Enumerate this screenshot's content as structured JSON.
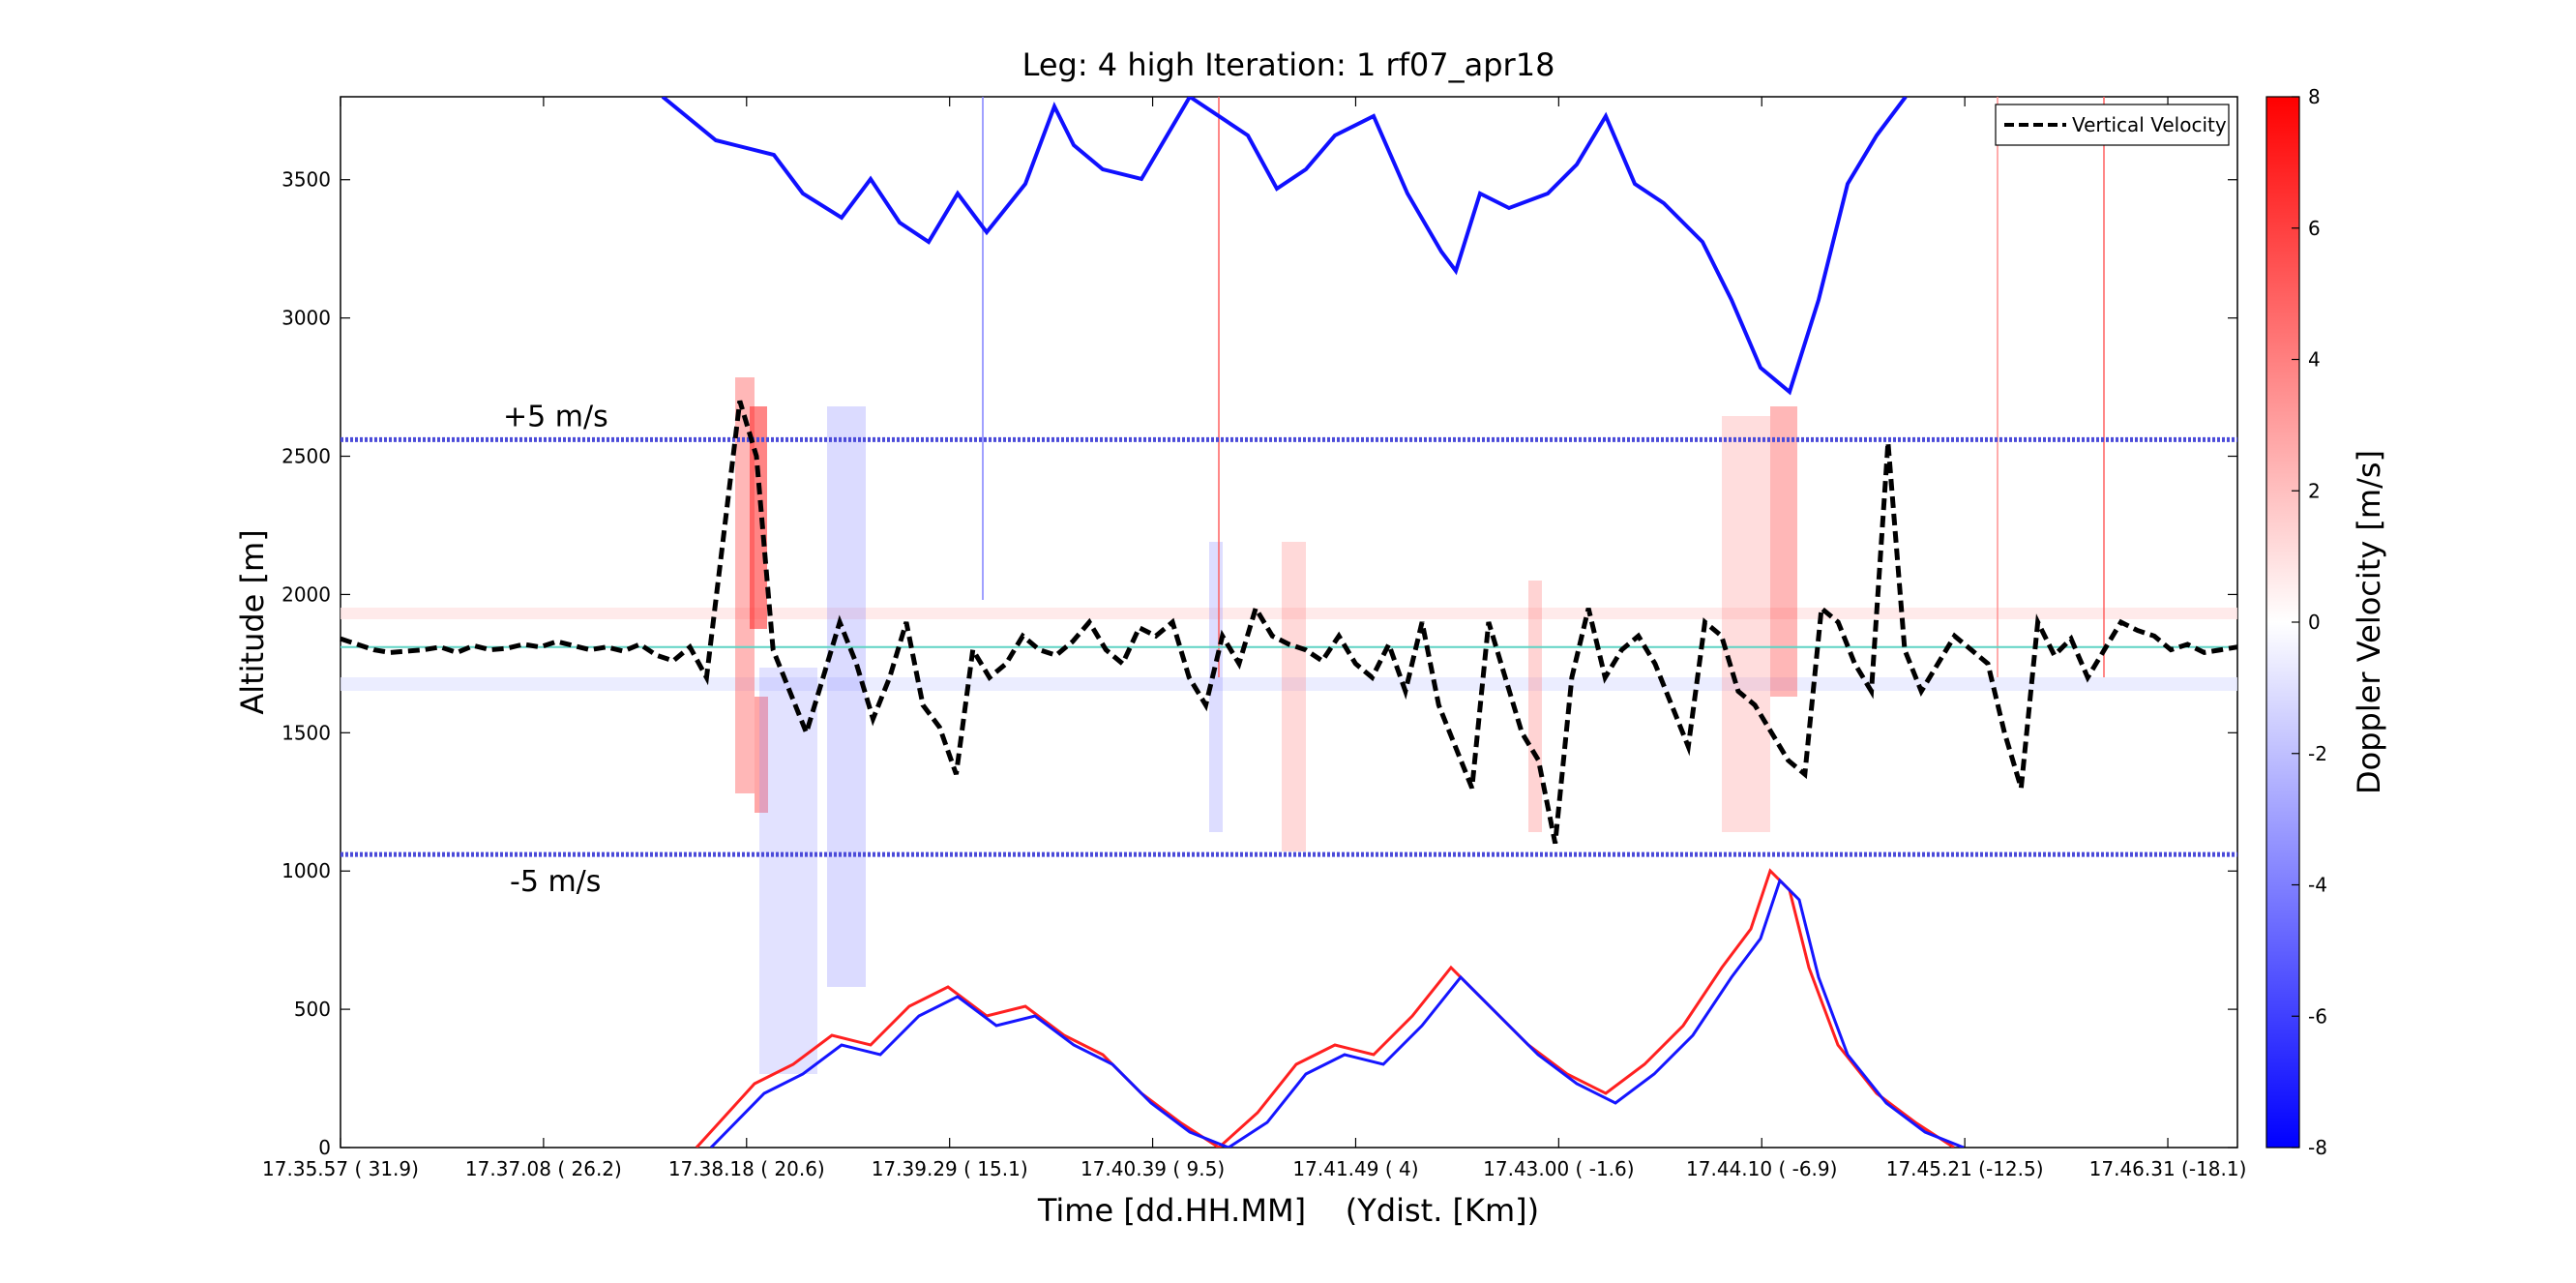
{
  "chart_data": {
    "type": "heatmap",
    "title": "Leg: 4 high Iteration: 1  rf07_apr18",
    "xlabel": "Time [dd.HH.MM]    (Ydist. [Km])",
    "ylabel": "Altitude [m]",
    "ylim": [
      0,
      3800
    ],
    "y_ticks": [
      0,
      500,
      1000,
      1500,
      2000,
      2500,
      3000,
      3500
    ],
    "x_tick_labels": [
      "17.35.57   ( 31.9)",
      "17.37.08    ( 26.2)",
      "17.38.18    ( 20.6)",
      "17.39.29    ( 15.1)",
      "17.40.39    ( 9.5)",
      "17.41.49    (    4)",
      "17.43.00    ( -1.6)",
      "17.44.10    ( -6.9)",
      "17.45.21    (-12.5)",
      "17.46.31    (-18.1)"
    ],
    "colorbar": {
      "label": "Doppler Velocity [m/s]",
      "range": [
        -8,
        8
      ],
      "ticks": [
        -8,
        -6,
        -4,
        -2,
        0,
        2,
        4,
        6,
        8
      ],
      "colormap": [
        "#0000ff",
        "#ffffff",
        "#ff0000"
      ]
    },
    "legend": {
      "placement": "top-right",
      "entries": [
        "Vertical Velocity"
      ]
    },
    "annotations": [
      {
        "text": "+5 m/s",
        "y": 2560
      },
      {
        "text": "-5 m/s",
        "y": 1060
      }
    ],
    "reference_lines": {
      "upper": 2560,
      "lower": 1060,
      "zero": 1810
    },
    "vertical_velocity_x_range": [
      0,
      99
    ],
    "vertical_velocity": [
      1840,
      1820,
      1800,
      1790,
      1795,
      1800,
      1810,
      1790,
      1815,
      1800,
      1805,
      1820,
      1810,
      1830,
      1815,
      1800,
      1810,
      1795,
      1820,
      1780,
      1760,
      1810,
      1700,
      2200,
      2700,
      2500,
      1800,
      1650,
      1500,
      1700,
      1900,
      1750,
      1550,
      1700,
      1900,
      1600,
      1520,
      1350,
      1800,
      1700,
      1750,
      1850,
      1800,
      1780,
      1830,
      1900,
      1800,
      1750,
      1880,
      1850,
      1900,
      1700,
      1600,
      1850,
      1750,
      1950,
      1850,
      1820,
      1800,
      1760,
      1850,
      1750,
      1700,
      1820,
      1650,
      1900,
      1600,
      1450,
      1300,
      1900,
      1700,
      1500,
      1400,
      1100,
      1700,
      1950,
      1700,
      1800,
      1850,
      1750,
      1600,
      1450,
      1900,
      1850,
      1650,
      1600,
      1500,
      1400,
      1350,
      1950,
      1900,
      1750,
      1650,
      2550,
      1800,
      1650,
      1750,
      1850,
      1800,
      1750,
      1500,
      1300,
      1900,
      1780,
      1840,
      1700,
      1800,
      1900,
      1870,
      1850,
      1800,
      1820,
      1790,
      1800,
      1810
    ]
  }
}
